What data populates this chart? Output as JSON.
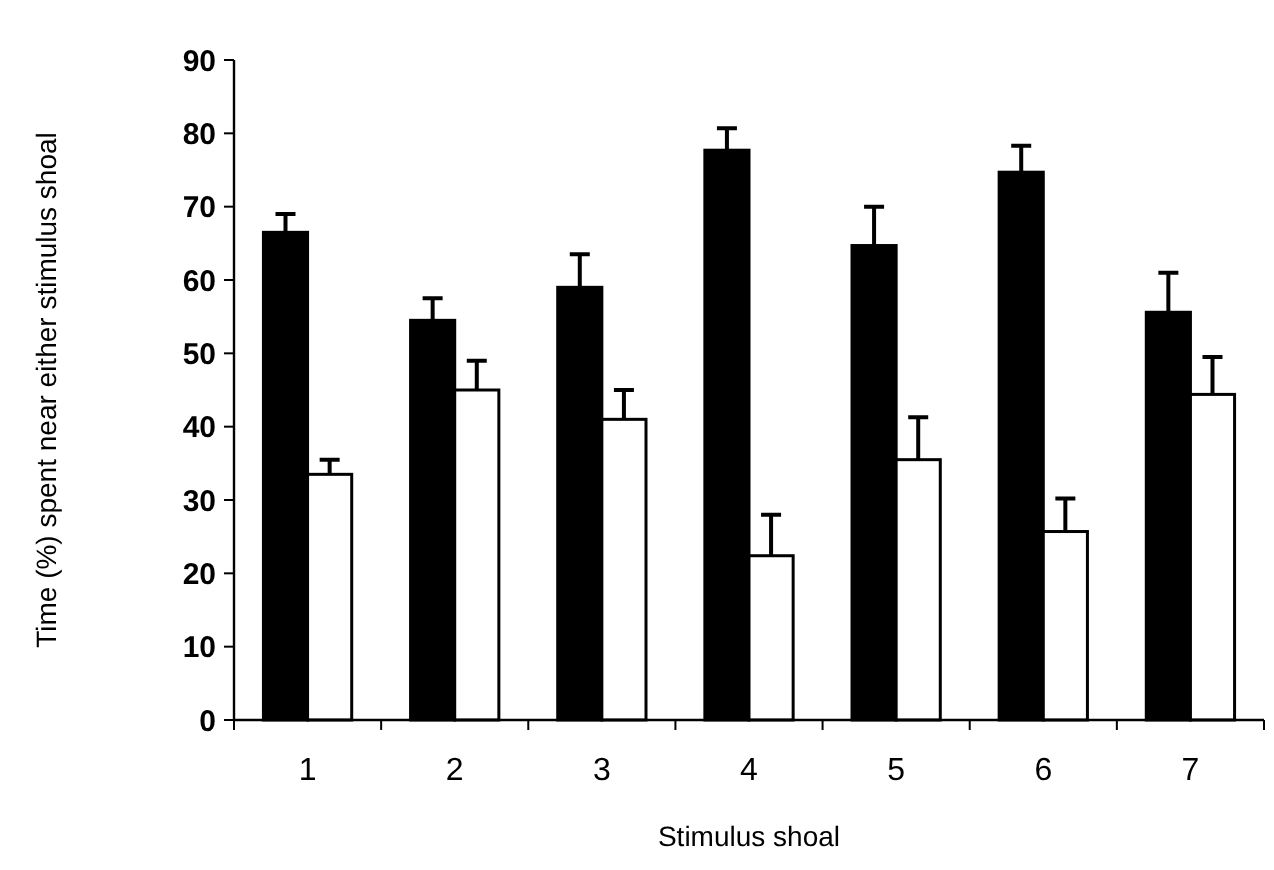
{
  "chart_data": {
    "type": "bar",
    "xlabel": "Stimulus shoal",
    "ylabel": "Time (%) spent near either stimulus shoal",
    "categories": [
      "1",
      "2",
      "3",
      "4",
      "5",
      "6",
      "7"
    ],
    "series": [
      {
        "color": "#000000",
        "values": [
          66.5,
          54.5,
          59,
          77.7,
          64.7,
          74.7,
          55.6
        ],
        "errors": [
          2.5,
          3,
          4.5,
          3,
          5.3,
          3.6,
          5.4
        ]
      },
      {
        "color": "#ffffff",
        "values": [
          33.5,
          45,
          41,
          22.4,
          35.5,
          25.7,
          44.4
        ],
        "errors": [
          2,
          4,
          4,
          5.6,
          5.8,
          4.5,
          5.1
        ]
      }
    ],
    "ylim": [
      0,
      90
    ],
    "yticks": [
      0,
      10,
      20,
      30,
      40,
      50,
      60,
      70,
      80,
      90
    ],
    "grid": false,
    "legend": false
  }
}
